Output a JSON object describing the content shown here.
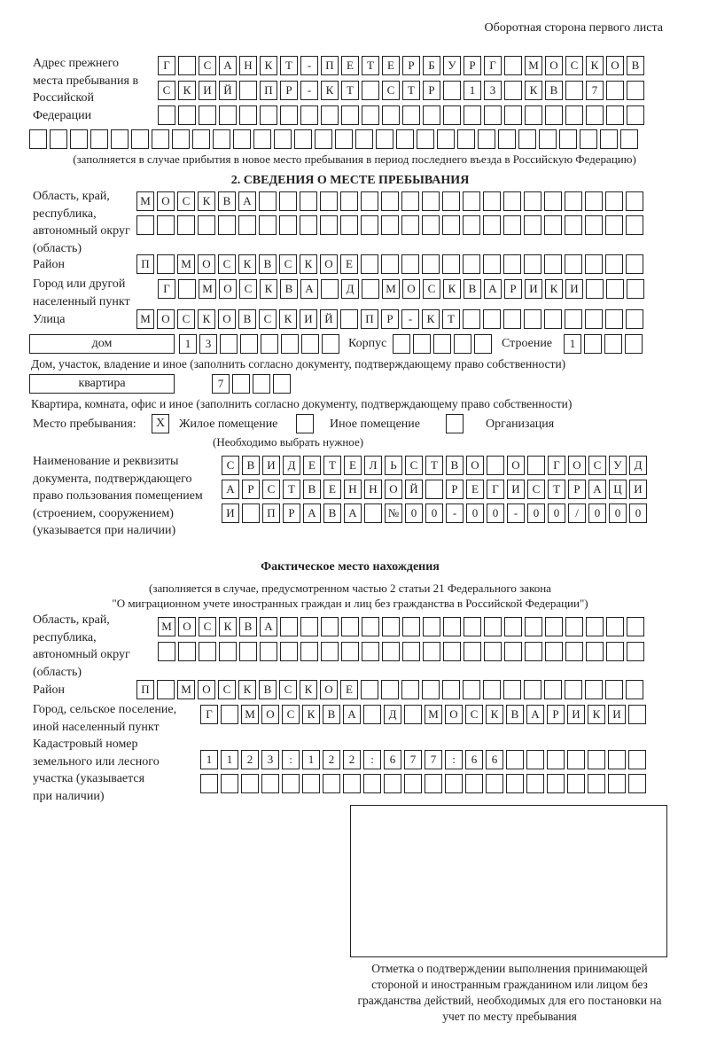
{
  "header": "Оборотная сторона первого листа",
  "previous_address": {
    "label": "Адрес прежнего места пребывания в Российской Федерации",
    "rows": [
      [
        "Г",
        "",
        "С",
        "А",
        "Н",
        "К",
        "Т",
        "-",
        "П",
        "Е",
        "Т",
        "Е",
        "Р",
        "Б",
        "У",
        "Р",
        "Г",
        "",
        "М",
        "О",
        "С",
        "К",
        "О",
        "В"
      ],
      [
        "С",
        "К",
        "И",
        "Й",
        "",
        "П",
        "Р",
        "-",
        "К",
        "Т",
        "",
        "С",
        "Т",
        "Р",
        "",
        "1",
        "3",
        "",
        "К",
        "В",
        "",
        "7",
        "",
        ""
      ],
      [
        "",
        "",
        "",
        "",
        "",
        "",
        "",
        "",
        "",
        "",
        "",
        "",
        "",
        "",
        "",
        "",
        "",
        "",
        "",
        "",
        "",
        "",
        "",
        ""
      ],
      [
        "",
        "",
        "",
        "",
        "",
        "",
        "",
        "",
        "",
        "",
        "",
        "",
        "",
        "",
        "",
        "",
        "",
        "",
        "",
        "",
        "",
        "",
        "",
        "",
        "",
        "",
        "",
        "",
        "",
        ""
      ]
    ],
    "note": "(заполняется в случае прибытия в новое место пребывания в период последнего въезда в Российскую Федерацию)"
  },
  "section2": {
    "title": "2. СВЕДЕНИЯ О МЕСТЕ ПРЕБЫВАНИЯ",
    "region_label": "Область, край, республика, автономный округ (область)",
    "region_rows": [
      [
        "М",
        "О",
        "С",
        "К",
        "В",
        "А",
        "",
        "",
        "",
        "",
        "",
        "",
        "",
        "",
        "",
        "",
        "",
        "",
        "",
        "",
        "",
        "",
        "",
        "",
        ""
      ],
      [
        "",
        "",
        "",
        "",
        "",
        "",
        "",
        "",
        "",
        "",
        "",
        "",
        "",
        "",
        "",
        "",
        "",
        "",
        "",
        "",
        "",
        "",
        "",
        "",
        ""
      ]
    ],
    "district_label": "Район",
    "district_row": [
      "П",
      "",
      "М",
      "О",
      "С",
      "К",
      "В",
      "С",
      "К",
      "О",
      "Е",
      "",
      "",
      "",
      "",
      "",
      "",
      "",
      "",
      "",
      "",
      "",
      "",
      "",
      ""
    ],
    "city_label": "Город или другой населенный пункт",
    "city_row": [
      "Г",
      "",
      "М",
      "О",
      "С",
      "К",
      "В",
      "А",
      "",
      "Д",
      "",
      "М",
      "О",
      "С",
      "К",
      "В",
      "А",
      "Р",
      "И",
      "К",
      "И",
      "",
      "",
      ""
    ],
    "street_label": "Улица",
    "street_row": [
      "М",
      "О",
      "С",
      "К",
      "О",
      "В",
      "С",
      "К",
      "И",
      "Й",
      "",
      "П",
      "Р",
      "-",
      "К",
      "Т",
      "",
      "",
      "",
      "",
      "",
      "",
      "",
      "",
      ""
    ],
    "house_type": "дом",
    "house_cells": [
      "1",
      "3",
      "",
      "",
      "",
      "",
      "",
      ""
    ],
    "korpus_label": "Корпус",
    "korpus_cells": [
      "",
      "",
      "",
      "",
      ""
    ],
    "building_label": "Строение",
    "building_cells": [
      "1",
      "",
      "",
      ""
    ],
    "house_note": "Дом, участок, владение и иное (заполнить согласно документу, подтверждающему право собственности)",
    "flat_type": "квартира",
    "flat_cells": [
      "7",
      "",
      "",
      ""
    ],
    "flat_note": "Квартира, комната, офис и иное (заполнить согласно документу, подтверждающему право собственности)",
    "stay_place_label": "Место пребывания:",
    "stay_options": [
      {
        "label": "Жилое помещение",
        "mark": "X"
      },
      {
        "label": "Иное помещение",
        "mark": ""
      },
      {
        "label": "Организация",
        "mark": ""
      }
    ],
    "stay_note": "(Необходимо выбрать нужное)",
    "doc_label": "Наименование и реквизиты документа, подтверждающего право пользования помещением (строением, сооружением) (указывается при наличии)",
    "doc_rows": [
      [
        "С",
        "В",
        "И",
        "Д",
        "Е",
        "Т",
        "Е",
        "Л",
        "Ь",
        "С",
        "Т",
        "В",
        "О",
        "",
        "О",
        "",
        "Г",
        "О",
        "С",
        "У",
        "Д"
      ],
      [
        "А",
        "Р",
        "С",
        "Т",
        "В",
        "Е",
        "Н",
        "Н",
        "О",
        "Й",
        "",
        "Р",
        "Е",
        "Г",
        "И",
        "С",
        "Т",
        "Р",
        "А",
        "Ц",
        "И"
      ],
      [
        "И",
        "",
        "П",
        "Р",
        "А",
        "В",
        "А",
        "",
        "№",
        "0",
        "0",
        "-",
        "0",
        "0",
        "-",
        "0",
        "0",
        "/",
        "0",
        "0",
        "0"
      ]
    ]
  },
  "actual": {
    "title": "Фактическое место нахождения",
    "note1": "(заполняется в случае, предусмотренном частью 2 статьи 21 Федерального закона",
    "note2": "\"О миграционном учете иностранных граждан и лиц без гражданства в Российской Федерации\")",
    "region_label": "Область, край, республика, автономный округ (область)",
    "region_rows": [
      [
        "М",
        "О",
        "С",
        "К",
        "В",
        "А",
        "",
        "",
        "",
        "",
        "",
        "",
        "",
        "",
        "",
        "",
        "",
        "",
        "",
        "",
        "",
        "",
        "",
        ""
      ],
      [
        "",
        "",
        "",
        "",
        "",
        "",
        "",
        "",
        "",
        "",
        "",
        "",
        "",
        "",
        "",
        "",
        "",
        "",
        "",
        "",
        "",
        "",
        "",
        ""
      ]
    ],
    "district_label": "Район",
    "district_row": [
      "П",
      "",
      "М",
      "О",
      "С",
      "К",
      "В",
      "С",
      "К",
      "О",
      "Е",
      "",
      "",
      "",
      "",
      "",
      "",
      "",
      "",
      "",
      "",
      "",
      "",
      "",
      ""
    ],
    "city_label": "Город, сельское поселение, иной населенный пункт",
    "city_row": [
      "Г",
      "",
      "М",
      "О",
      "С",
      "К",
      "В",
      "А",
      "",
      "Д",
      "",
      "М",
      "О",
      "С",
      "К",
      "В",
      "А",
      "Р",
      "И",
      "К",
      "И",
      ""
    ],
    "cadastral_label": "Кадастровый номер земельного или лесного участка (указывается при наличии)",
    "cadastral_rows": [
      [
        "1",
        "1",
        "2",
        "3",
        ":",
        "1",
        "2",
        "2",
        ":",
        "6",
        "7",
        "7",
        ":",
        "6",
        "6",
        "",
        "",
        "",
        "",
        "",
        "",
        ""
      ],
      [
        "",
        "",
        "",
        "",
        "",
        "",
        "",
        "",
        "",
        "",
        "",
        "",
        "",
        "",
        "",
        "",
        "",
        "",
        "",
        "",
        "",
        ""
      ]
    ]
  },
  "stamp_caption": "Отметка о подтверждении выполнения принимающей стороной и иностранным гражданином или лицом без гражданства действий, необходимых для его постановки на учет по месту пребывания"
}
